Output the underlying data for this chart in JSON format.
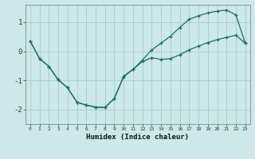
{
  "xlabel": "Humidex (Indice chaleur)",
  "bg_color": "#cce8e8",
  "grid_color": "#aacccc",
  "line_color": "#1a7060",
  "xlim": [
    -0.5,
    23.5
  ],
  "ylim": [
    -2.5,
    1.6
  ],
  "xticks": [
    0,
    1,
    2,
    3,
    4,
    5,
    6,
    7,
    8,
    9,
    10,
    11,
    12,
    13,
    14,
    15,
    16,
    17,
    18,
    19,
    20,
    21,
    22,
    23
  ],
  "yticks": [
    -2,
    -1,
    0,
    1
  ],
  "curve1_x": [
    0,
    1,
    2,
    3,
    4,
    5,
    6,
    7,
    8,
    9,
    10,
    11,
    12,
    13,
    14,
    15,
    16,
    17,
    18,
    19,
    20,
    21,
    22,
    23
  ],
  "curve1_y": [
    0.35,
    -0.25,
    -0.52,
    -0.98,
    -1.25,
    -1.75,
    -1.85,
    -1.92,
    -1.93,
    -1.62,
    -0.88,
    -0.62,
    -0.35,
    -0.22,
    -0.28,
    -0.25,
    -0.12,
    0.05,
    0.18,
    0.3,
    0.4,
    0.48,
    0.55,
    0.28
  ],
  "curve2_x": [
    0,
    1,
    2,
    3,
    4,
    5,
    6,
    7,
    8,
    9,
    10,
    11,
    12,
    13,
    14,
    15,
    16,
    17,
    18,
    19,
    20,
    21,
    22,
    23
  ],
  "curve2_y": [
    0.35,
    -0.25,
    -0.52,
    -0.98,
    -1.25,
    -1.75,
    -1.85,
    -1.92,
    -1.93,
    -1.62,
    -0.85,
    -0.62,
    -0.3,
    0.05,
    0.28,
    0.52,
    0.82,
    1.1,
    1.22,
    1.32,
    1.38,
    1.42,
    1.25,
    0.28
  ]
}
